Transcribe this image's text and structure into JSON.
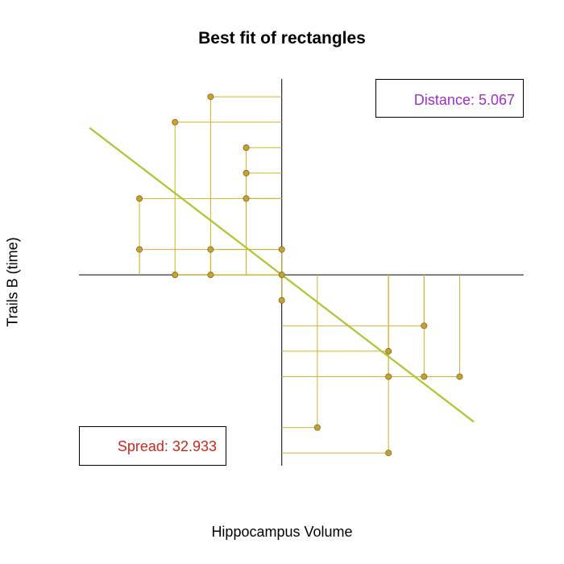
{
  "colors": {
    "points": "#c9a12c",
    "point_border": "#7a6a2a",
    "segments": "#d4b02e",
    "fit_line": "#a8c72c",
    "axes": "#000000",
    "distance_text": "#9c2fc4",
    "spread_text": "#c8281e"
  },
  "chart_data": {
    "type": "scatter",
    "title": "Best fit of rectangles",
    "xlabel": "Hippocampus Volume",
    "ylabel": "Trails B (time)",
    "xlim": [
      -5.7,
      6.8
    ],
    "ylim": [
      -7.5,
      7.7
    ],
    "grid": false,
    "centered_axes": {
      "x": 0,
      "y": 0
    },
    "points": [
      {
        "x": -2,
        "y": 7
      },
      {
        "x": -3,
        "y": 6
      },
      {
        "x": -1,
        "y": 5
      },
      {
        "x": -1,
        "y": 4
      },
      {
        "x": -4,
        "y": 3
      },
      {
        "x": -1,
        "y": 3
      },
      {
        "x": -4,
        "y": 1
      },
      {
        "x": -2,
        "y": 1
      },
      {
        "x": 0,
        "y": 1
      },
      {
        "x": -3,
        "y": 0
      },
      {
        "x": -2,
        "y": 0
      },
      {
        "x": 0,
        "y": 0
      },
      {
        "x": 0,
        "y": -1
      },
      {
        "x": 4,
        "y": -2
      },
      {
        "x": 3,
        "y": -3
      },
      {
        "x": 3,
        "y": -4
      },
      {
        "x": 4,
        "y": -4
      },
      {
        "x": 5,
        "y": -4
      },
      {
        "x": 1,
        "y": -6
      },
      {
        "x": 3,
        "y": -7
      }
    ],
    "fit_line": {
      "slope": -1.07,
      "intercept": 0,
      "x_range": [
        -5.4,
        5.4
      ]
    },
    "annotations": {
      "distance": "Distance: 5.067",
      "spread": "Spread: 32.933"
    },
    "annotation_positions": {
      "distance": "top-right",
      "spread": "bottom-left"
    }
  }
}
